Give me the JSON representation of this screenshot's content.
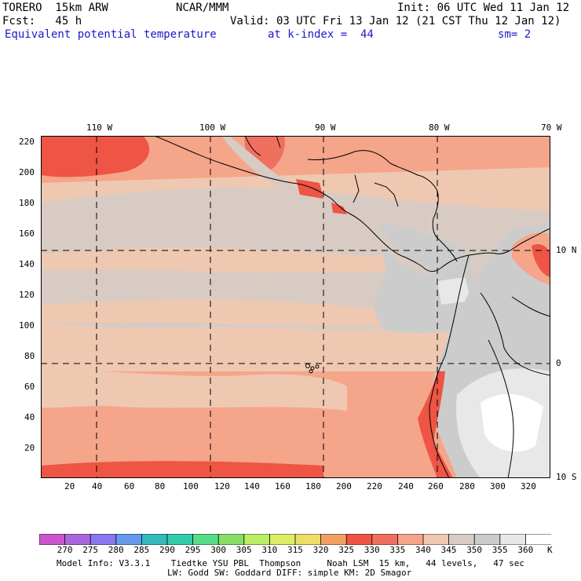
{
  "header": {
    "model": "TORERO  15km ARW",
    "org": "NCAR/MMM",
    "init": "Init: 06 UTC Wed 11 Jan 12",
    "fcst": "Fcst:   45 h",
    "valid": "Valid: 03 UTC Fri 13 Jan 12 (21 CST Thu 12 Jan 12)",
    "field": "Equivalent potential temperature",
    "level": "at k-index =  44",
    "smooth": "sm= 2"
  },
  "map": {
    "lon_labels": [
      "110 W",
      "100 W",
      "90 W",
      "80 W",
      "70 W"
    ],
    "lat_labels": [
      "10 N",
      "0",
      "10 S"
    ],
    "y_ticks": [
      "220",
      "200",
      "180",
      "160",
      "140",
      "120",
      "100",
      "80",
      "60",
      "40",
      "20"
    ],
    "x_ticks": [
      "20",
      "40",
      "60",
      "80",
      "100",
      "120",
      "140",
      "160",
      "180",
      "200",
      "220",
      "240",
      "260",
      "280",
      "300",
      "320"
    ]
  },
  "colorbar": {
    "labels": [
      "270",
      "275",
      "280",
      "285",
      "290",
      "295",
      "300",
      "305",
      "310",
      "315",
      "320",
      "325",
      "330",
      "335",
      "340",
      "345",
      "350",
      "355",
      "360"
    ],
    "unit": "K",
    "colors": [
      "#cc55cc",
      "#aa66dd",
      "#8877ee",
      "#6699ee",
      "#33bbbb",
      "#33ccaa",
      "#55dd88",
      "#88dd66",
      "#bbee66",
      "#ddee66",
      "#eedd66",
      "#f0a060",
      "#ee5544",
      "#f07060",
      "#f5a58a",
      "#efc8b2",
      "#d8cbc3",
      "#cccccc",
      "#e8e8e8",
      "#ffffff"
    ]
  },
  "footer": {
    "line1": "Model Info: V3.3.1    Tiedtke YSU PBL  Thompson     Noah LSM  15 km,   44 levels,   47 sec",
    "line2": "LW: Godd SW: Goddard DIFF: simple KM: 2D Smagor"
  }
}
